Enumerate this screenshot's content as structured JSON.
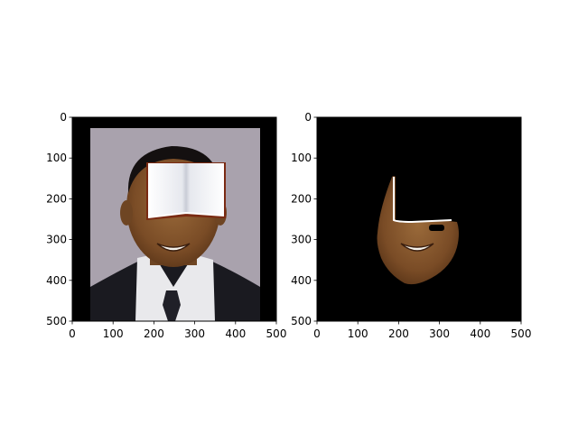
{
  "figure": {
    "background": "#ffffff"
  },
  "chart_data": [
    {
      "type": "image",
      "content": "portrait of a smiling man in a dark suit, white shirt and dark tie, grey backdrop with black border; a white open-book shaped occluder covers the upper face",
      "xlim": [
        0,
        500
      ],
      "ylim": [
        500,
        0
      ],
      "xticks": [
        0,
        100,
        200,
        300,
        400,
        500
      ],
      "yticks": [
        0,
        100,
        200,
        300,
        400,
        500
      ],
      "xtick_labels": [
        "0",
        "100",
        "200",
        "300",
        "400",
        "500"
      ],
      "ytick_labels": [
        "0",
        "100",
        "200",
        "300",
        "400",
        "500"
      ],
      "colors": {
        "backdrop": "#a9a2ad",
        "border": "#000000",
        "suit": "#1a1a20",
        "shirt": "#e9e9ec",
        "skin": "#8a5a2f",
        "occluder": "#f4f4f6"
      }
    },
    {
      "type": "image",
      "content": "segmented face region (lower face, L-shaped mask) on black background; small black hole near right cheek",
      "xlim": [
        0,
        500
      ],
      "ylim": [
        500,
        0
      ],
      "xticks": [
        0,
        100,
        200,
        300,
        400,
        500
      ],
      "yticks": [
        0,
        100,
        200,
        300,
        400,
        500
      ],
      "xtick_labels": [
        "0",
        "100",
        "200",
        "300",
        "400",
        "500"
      ],
      "ytick_labels": [
        "0",
        "100",
        "200",
        "300",
        "400",
        "500"
      ],
      "colors": {
        "background": "#000000",
        "skin": "#8a5a2f"
      }
    }
  ]
}
